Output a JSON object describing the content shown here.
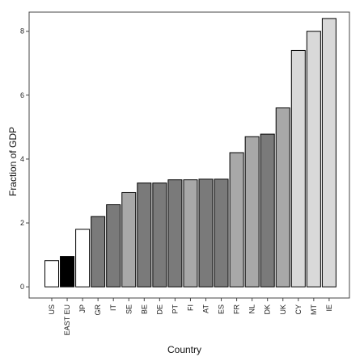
{
  "chart_data": {
    "type": "bar",
    "title": "",
    "xlabel": "Country",
    "ylabel": "Fraction of GDP",
    "ylim": [
      -0.35,
      8.6
    ],
    "yticks": [
      0,
      2,
      4,
      6,
      8
    ],
    "grid": false,
    "legend": "none",
    "categories": [
      "US",
      "EAST EU",
      "JP",
      "GR",
      "IT",
      "SE",
      "BE",
      "DE",
      "PT",
      "FI",
      "AT",
      "ES",
      "FR",
      "NL",
      "DK",
      "UK",
      "CY",
      "MT",
      "IE"
    ],
    "values": [
      0.82,
      0.95,
      1.8,
      2.2,
      2.57,
      2.95,
      3.25,
      3.25,
      3.35,
      3.35,
      3.37,
      3.37,
      4.2,
      4.7,
      4.78,
      5.6,
      7.4,
      8.0,
      8.4
    ],
    "bar_colors": [
      "#ffffff",
      "#000000",
      "#ffffff",
      "#7a7a7a",
      "#7a7a7a",
      "#a8a8a8",
      "#7a7a7a",
      "#7a7a7a",
      "#7a7a7a",
      "#a8a8a8",
      "#7a7a7a",
      "#7a7a7a",
      "#a8a8a8",
      "#a8a8a8",
      "#7a7a7a",
      "#a8a8a8",
      "#d9d9d9",
      "#d9d9d9",
      "#d9d9d9"
    ]
  }
}
